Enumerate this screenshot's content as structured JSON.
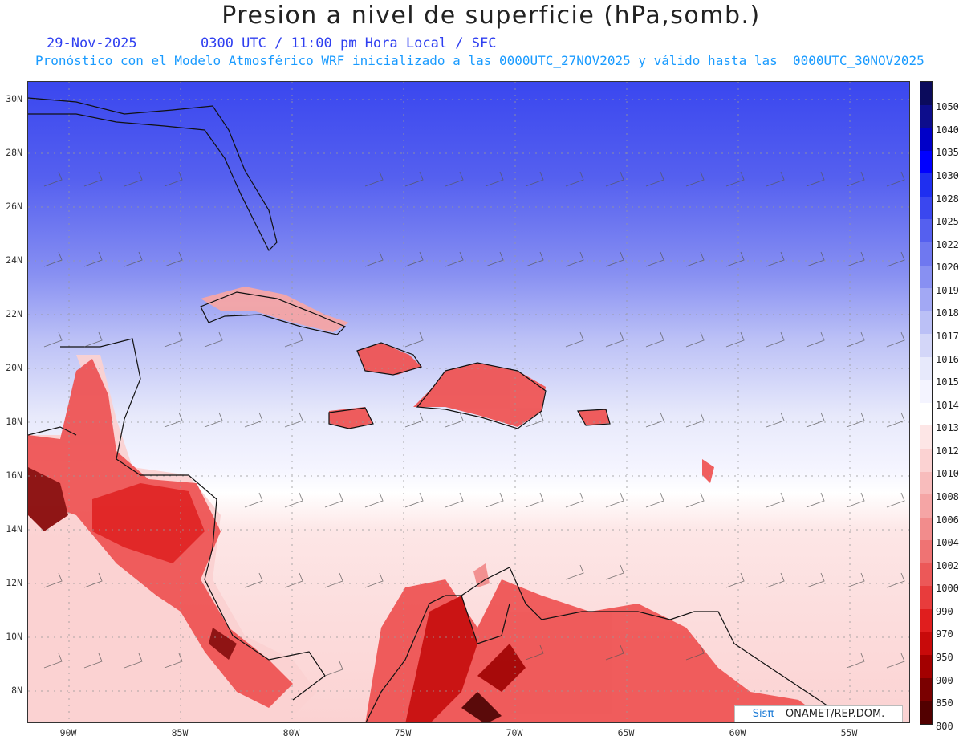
{
  "title": "Presion a nivel de superficie (hPa,somb.)",
  "subtitle_date": "29-Nov-2025",
  "subtitle_time": "0300 UTC / 11:00 pm Hora Local / SFC",
  "subtitle_model": "Pronóstico con el Modelo Atmosférico WRF inicializado a las 0000UTC_27NOV2025 y válido hasta las  0000UTC_30NOV2025",
  "credit_logo": "Sisπ",
  "credit_text": " – ONAMET/REP.DOM.",
  "lat_labels": [
    "30N",
    "28N",
    "26N",
    "24N",
    "22N",
    "20N",
    "18N",
    "16N",
    "14N",
    "12N",
    "10N",
    "8N"
  ],
  "lon_labels": [
    "90W",
    "85W",
    "80W",
    "75W",
    "70W",
    "65W",
    "60W",
    "55W"
  ],
  "colorbar": {
    "labels": [
      "1050",
      "1040",
      "1035",
      "1030",
      "1028",
      "1025",
      "1022",
      "1020",
      "1019",
      "1018",
      "1017",
      "1016",
      "1015",
      "1014",
      "1013",
      "1012",
      "1010",
      "1008",
      "1006",
      "1004",
      "1002",
      "1000",
      "990",
      "970",
      "950",
      "900",
      "850",
      "800"
    ],
    "colors": [
      "#0b0b5c",
      "#0d0d8c",
      "#0000c8",
      "#0000ff",
      "#1f2ff0",
      "#3a47ef",
      "#5560ef",
      "#6f78f0",
      "#8890f2",
      "#a2a8f4",
      "#bbc0f6",
      "#d3d6f8",
      "#e7e9fb",
      "#f4f4ff",
      "#ffffff",
      "#fde6e6",
      "#fbd2d2",
      "#f8bcbc",
      "#f5a5a5",
      "#f28c8c",
      "#ef7373",
      "#ec5858",
      "#e83c3c",
      "#e01e1e",
      "#c80a0a",
      "#a30000",
      "#7a0000",
      "#520000"
    ]
  },
  "map": {
    "lon_range": [
      -92,
      -52.5
    ],
    "lat_range": [
      7,
      30.8
    ]
  }
}
